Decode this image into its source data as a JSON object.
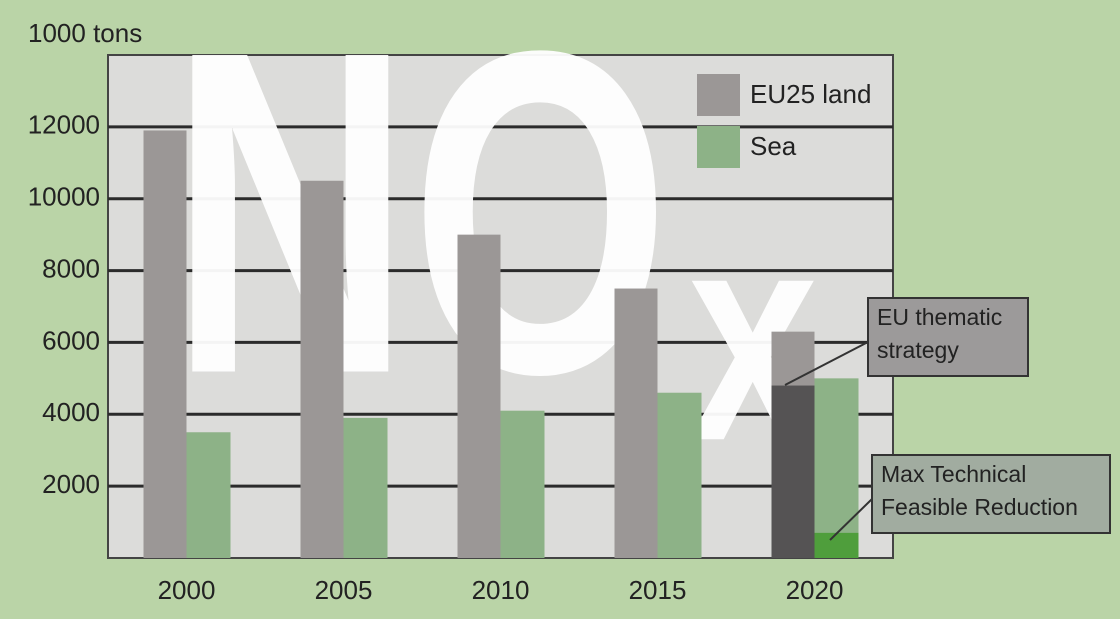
{
  "chart_data": {
    "type": "bar",
    "y_label": "1000 tons",
    "watermark": {
      "main": "NO",
      "sub": "x"
    },
    "categories": [
      "2000",
      "2005",
      "2010",
      "2015",
      "2020"
    ],
    "series": [
      {
        "name": "EU25 land",
        "color": "#9b9796",
        "values": [
          11900,
          10500,
          9000,
          7500,
          6300
        ]
      },
      {
        "name": "Sea",
        "color": "#8db287",
        "values": [
          3500,
          3900,
          4100,
          4600,
          5000
        ]
      }
    ],
    "annotations": [
      {
        "lines": [
          "EU thematic",
          "strategy"
        ],
        "category": "2020",
        "series": "EU25 land",
        "value": 4800,
        "color": "#555354"
      },
      {
        "lines": [
          "Max Technical",
          "Feasible Reduction"
        ],
        "category": "2020",
        "series": "Sea",
        "value": 700,
        "color": "#4f9e3c"
      }
    ],
    "ylim": [
      0,
      14000
    ],
    "yticks": [
      2000,
      4000,
      6000,
      8000,
      10000,
      12000
    ],
    "grid": true,
    "legend": "top-right",
    "background": "#bad4a7"
  }
}
